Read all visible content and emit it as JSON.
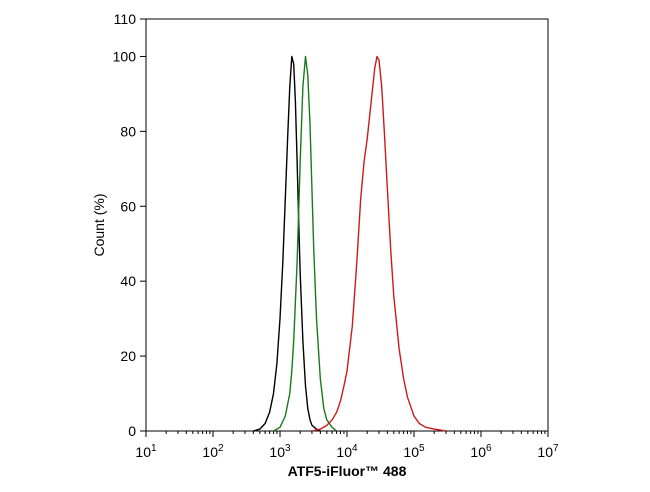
{
  "chart_data": {
    "type": "line",
    "title": "",
    "xlabel": "ATF5-iFluor™ 488",
    "ylabel": "Count  (%)",
    "x_scale": "log",
    "xlim": [
      10,
      10000000
    ],
    "ylim": [
      0,
      110
    ],
    "x_ticks": [
      {
        "value": 10,
        "base": "10",
        "exp": "1"
      },
      {
        "value": 100,
        "base": "10",
        "exp": "2"
      },
      {
        "value": 1000,
        "base": "10",
        "exp": "3"
      },
      {
        "value": 10000,
        "base": "10",
        "exp": "4"
      },
      {
        "value": 100000,
        "base": "10",
        "exp": "5"
      },
      {
        "value": 1000000,
        "base": "10",
        "exp": "6"
      },
      {
        "value": 10000000,
        "base": "10",
        "exp": "7"
      }
    ],
    "y_ticks": [
      "0",
      "20",
      "40",
      "60",
      "80",
      "100",
      "110"
    ],
    "grid": false,
    "legend": "none",
    "series": [
      {
        "color": "#000000",
        "x": [
          400,
          500,
          600,
          700,
          800,
          900,
          1000,
          1100,
          1200,
          1300,
          1400,
          1500,
          1600,
          1700,
          1800,
          1900,
          2000,
          2200,
          2400,
          2600,
          2800,
          3000,
          3500,
          4000
        ],
        "y": [
          0,
          0.5,
          2,
          5,
          10,
          18,
          30,
          45,
          62,
          78,
          92,
          100,
          98,
          88,
          72,
          56,
          42,
          24,
          12,
          6,
          3,
          1.5,
          0.5,
          0
        ]
      },
      {
        "color": "#1a7a1a",
        "x": [
          800,
          1000,
          1200,
          1400,
          1500,
          1600,
          1800,
          2000,
          2200,
          2400,
          2600,
          2800,
          3000,
          3200,
          3500,
          4000,
          4500,
          5000,
          6000,
          7000
        ],
        "y": [
          0,
          1,
          4,
          10,
          16,
          24,
          45,
          72,
          92,
          100,
          95,
          82,
          64,
          48,
          30,
          14,
          6,
          3,
          1,
          0
        ]
      },
      {
        "color": "#cc1a1a",
        "x": [
          3000,
          4000,
          5000,
          6000,
          7000,
          8000,
          9000,
          10000,
          12000,
          14000,
          16000,
          18000,
          20000,
          23000,
          26000,
          28000,
          30000,
          33000,
          36000,
          40000,
          45000,
          50000,
          60000,
          70000,
          80000,
          100000,
          120000,
          150000,
          200000,
          300000
        ],
        "y": [
          0,
          0.5,
          1.5,
          3,
          5,
          8,
          12,
          16,
          28,
          45,
          62,
          72,
          78,
          88,
          97,
          100,
          99,
          92,
          80,
          65,
          48,
          36,
          22,
          14,
          9,
          4,
          2,
          1,
          0.5,
          0
        ]
      }
    ]
  }
}
